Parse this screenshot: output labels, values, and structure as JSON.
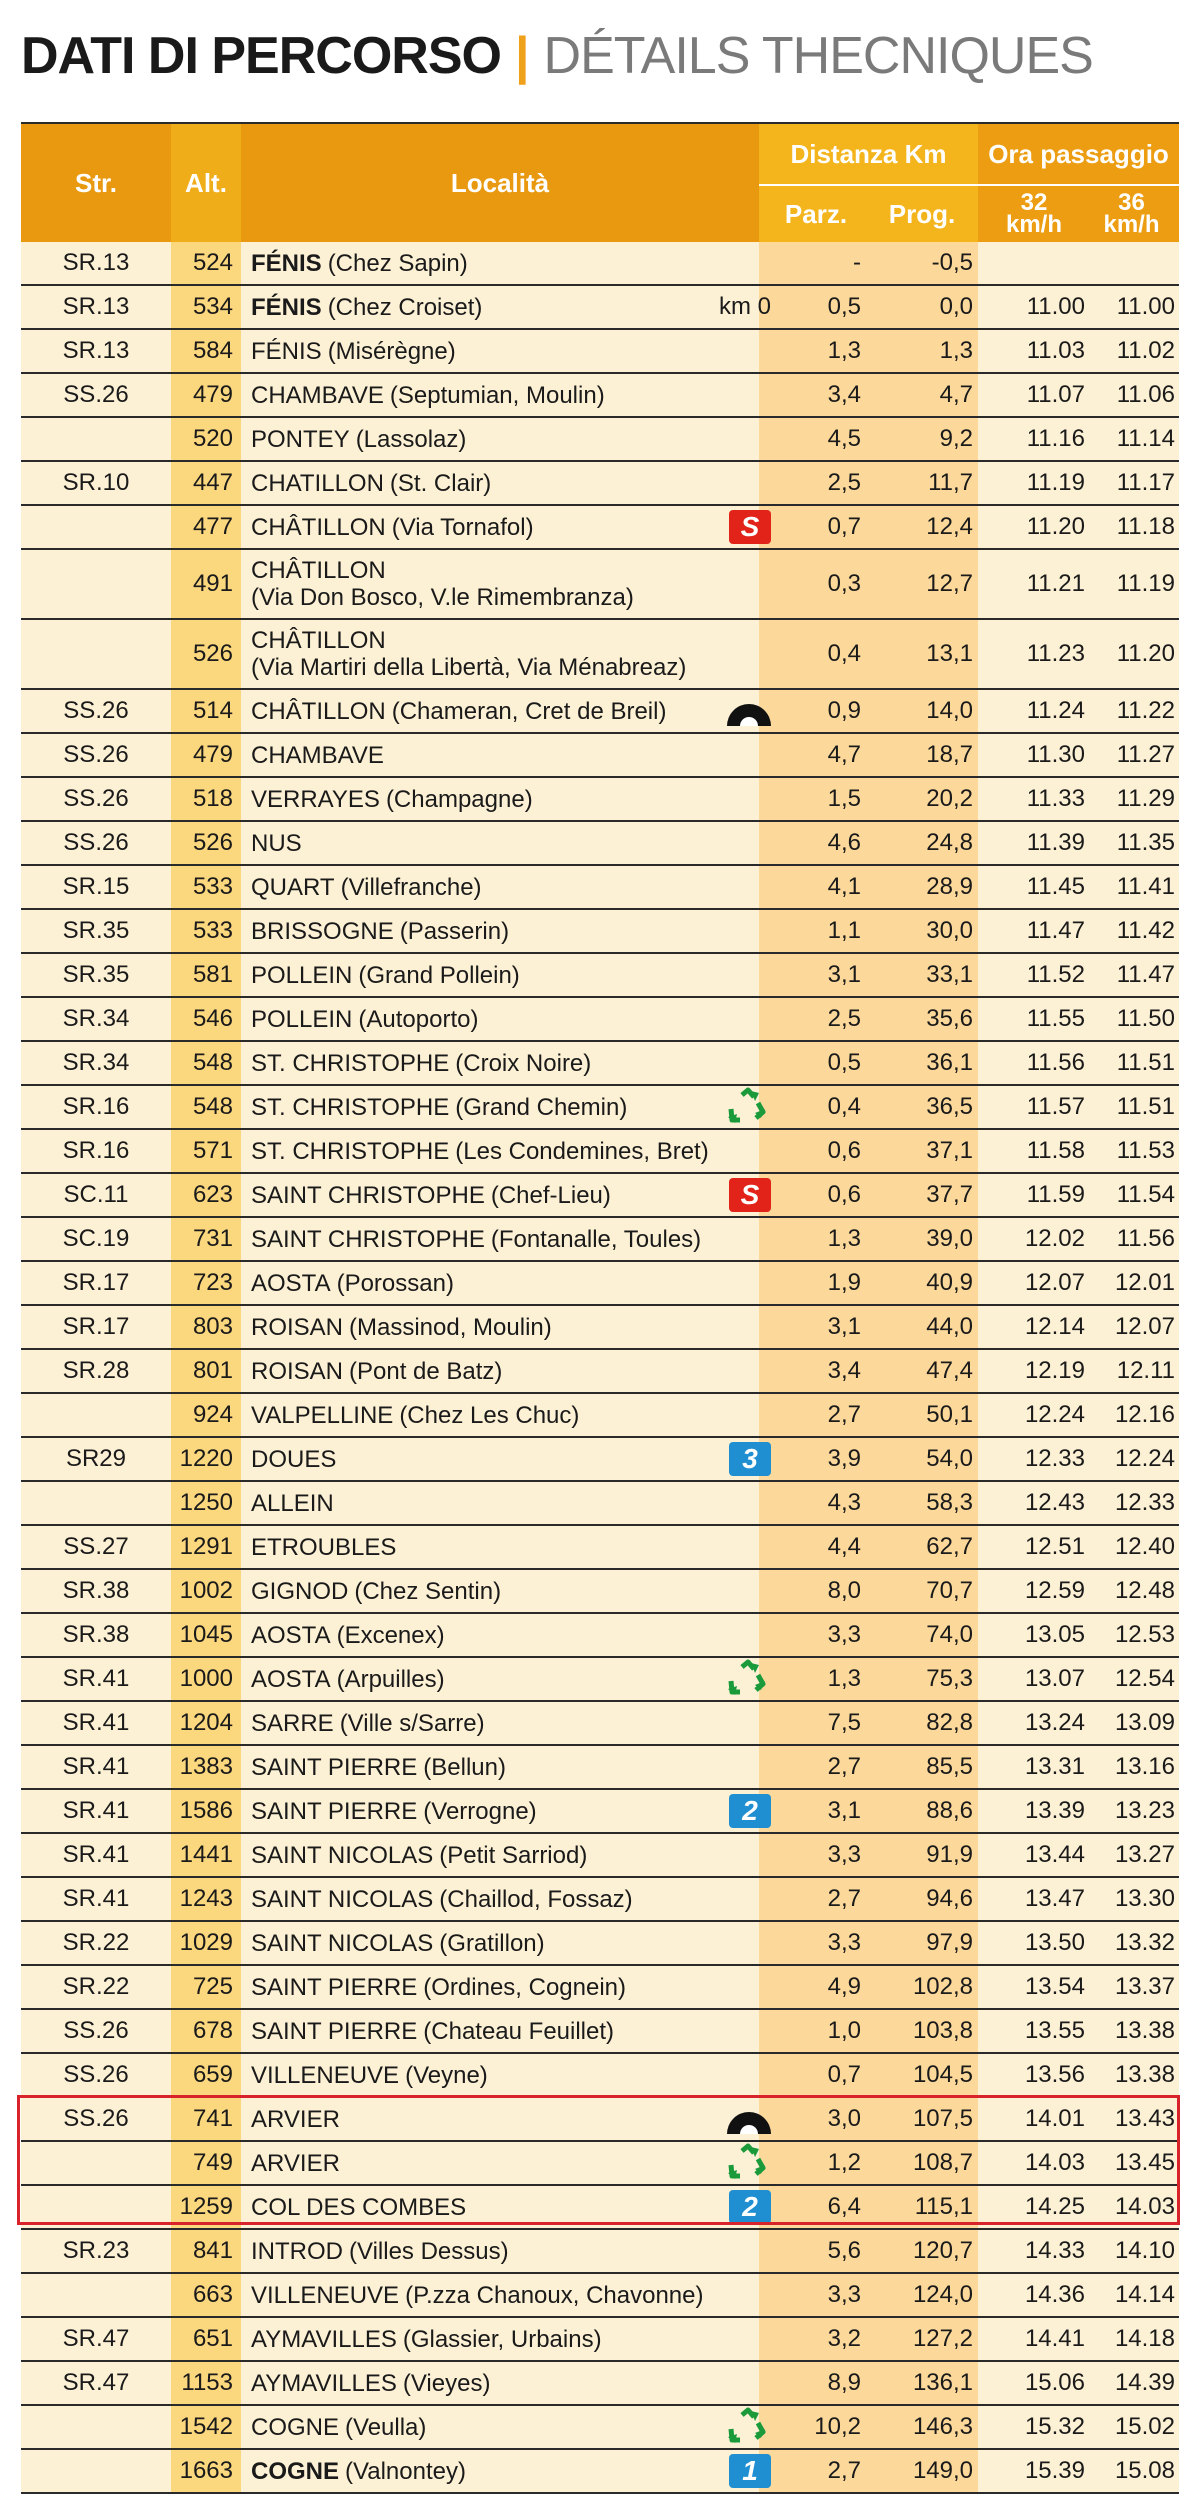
{
  "title": {
    "main": "DATI DI PERCORSO",
    "separator": "|",
    "sub": "DÉTAILS THECNIQUES"
  },
  "colors": {
    "header": "#e8990f",
    "row": "#fdf1d5",
    "alt_column": "#fbd77e",
    "dist_column": "#fcd99a",
    "highlight_border": "#d9232a",
    "icon_red": "#e2231a",
    "icon_blue": "#1f8fd1",
    "icon_green": "#1a9a3a"
  },
  "headers": {
    "str": "Str.",
    "alt": "Alt.",
    "localita": "Località",
    "distanza": "Distanza Km",
    "parz": "Parz.",
    "prog": "Prog.",
    "ora": "Ora passaggio",
    "speed1_num": "32",
    "speed1_unit": "km/h",
    "speed2_num": "36",
    "speed2_unit": "km/h"
  },
  "rows": [
    {
      "str": "SR.13",
      "alt": "524",
      "city": "FÉNIS",
      "bold": true,
      "detail": "(Chez Sapin)",
      "parz": "-",
      "prog": "-0,5",
      "o32": "",
      "o36": ""
    },
    {
      "str": "SR.13",
      "alt": "534",
      "city": "FÉNIS",
      "bold": true,
      "detail": "(Chez Croiset)",
      "note": "km 0",
      "parz": "0,5",
      "prog": "0,0",
      "o32": "11.00",
      "o36": "11.00"
    },
    {
      "str": "SR.13",
      "alt": "584",
      "city": "FÉNIS",
      "detail": "(Misérègne)",
      "parz": "1,3",
      "prog": "1,3",
      "o32": "11.03",
      "o36": "11.02"
    },
    {
      "str": "SS.26",
      "alt": "479",
      "city": "CHAMBAVE",
      "detail": "(Septumian, Moulin)",
      "parz": "3,4",
      "prog": "4,7",
      "o32": "11.07",
      "o36": "11.06"
    },
    {
      "str": "",
      "alt": "520",
      "city": "PONTEY",
      "detail": "(Lassolaz)",
      "parz": "4,5",
      "prog": "9,2",
      "o32": "11.16",
      "o36": "11.14"
    },
    {
      "str": "SR.10",
      "alt": "447",
      "city": "CHATILLON",
      "detail": "(St. Clair)",
      "parz": "2,5",
      "prog": "11,7",
      "o32": "11.19",
      "o36": "11.17"
    },
    {
      "str": "",
      "alt": "477",
      "city": "CHÂTILLON",
      "detail": "(Via Tornafol)",
      "icon": "s",
      "icon_text": "S",
      "parz": "0,7",
      "prog": "12,4",
      "o32": "11.20",
      "o36": "11.18"
    },
    {
      "str": "",
      "alt": "491",
      "city": "CHÂTILLON",
      "detail": "(Via Don Bosco, V.le Rimembranza)",
      "tall": true,
      "parz": "0,3",
      "prog": "12,7",
      "o32": "11.21",
      "o36": "11.19"
    },
    {
      "str": "",
      "alt": "526",
      "city": "CHÂTILLON",
      "detail": "(Via Martiri della Libertà, Via Ménabreaz)",
      "tall": true,
      "parz": "0,4",
      "prog": "13,1",
      "o32": "11.23",
      "o36": "11.20"
    },
    {
      "str": "SS.26",
      "alt": "514",
      "city": "CHÂTILLON",
      "detail": "(Chameran, Cret de Breil)",
      "icon": "tunnel",
      "parz": "0,9",
      "prog": "14,0",
      "o32": "11.24",
      "o36": "11.22"
    },
    {
      "str": "SS.26",
      "alt": "479",
      "city": "CHAMBAVE",
      "detail": "",
      "parz": "4,7",
      "prog": "18,7",
      "o32": "11.30",
      "o36": "11.27"
    },
    {
      "str": "SS.26",
      "alt": "518",
      "city": "VERRAYES",
      "detail": "(Champagne)",
      "parz": "1,5",
      "prog": "20,2",
      "o32": "11.33",
      "o36": "11.29"
    },
    {
      "str": "SS.26",
      "alt": "526",
      "city": "NUS",
      "detail": "",
      "parz": "4,6",
      "prog": "24,8",
      "o32": "11.39",
      "o36": "11.35"
    },
    {
      "str": "SR.15",
      "alt": "533",
      "city": "QUART",
      "detail": "(Villefranche)",
      "parz": "4,1",
      "prog": "28,9",
      "o32": "11.45",
      "o36": "11.41"
    },
    {
      "str": "SR.35",
      "alt": "533",
      "city": "BRISSOGNE",
      "detail": "(Passerin)",
      "parz": "1,1",
      "prog": "30,0",
      "o32": "11.47",
      "o36": "11.42"
    },
    {
      "str": "SR.35",
      "alt": "581",
      "city": "POLLEIN",
      "detail": "(Grand Pollein)",
      "parz": "3,1",
      "prog": "33,1",
      "o32": "11.52",
      "o36": "11.47"
    },
    {
      "str": "SR.34",
      "alt": "546",
      "city": "POLLEIN",
      "detail": "(Autoporto)",
      "parz": "2,5",
      "prog": "35,6",
      "o32": "11.55",
      "o36": "11.50"
    },
    {
      "str": "SR.34",
      "alt": "548",
      "city": "ST. CHRISTOPHE",
      "detail": "(Croix Noire)",
      "parz": "0,5",
      "prog": "36,1",
      "o32": "11.56",
      "o36": "11.51"
    },
    {
      "str": "SR.16",
      "alt": "548",
      "city": "ST. CHRISTOPHE",
      "detail": "(Grand Chemin)",
      "icon": "recycle",
      "parz": "0,4",
      "prog": "36,5",
      "o32": "11.57",
      "o36": "11.51"
    },
    {
      "str": "SR.16",
      "alt": "571",
      "city": "ST. CHRISTOPHE",
      "detail": "(Les Condemines, Bret)",
      "parz": "0,6",
      "prog": "37,1",
      "o32": "11.58",
      "o36": "11.53"
    },
    {
      "str": "SC.11",
      "alt": "623",
      "city": "SAINT CHRISTOPHE",
      "detail": "(Chef-Lieu)",
      "icon": "s",
      "icon_text": "S",
      "parz": "0,6",
      "prog": "37,7",
      "o32": "11.59",
      "o36": "11.54"
    },
    {
      "str": "SC.19",
      "alt": "731",
      "city": "SAINT CHRISTOPHE",
      "detail": "(Fontanalle, Toules)",
      "parz": "1,3",
      "prog": "39,0",
      "o32": "12.02",
      "o36": "11.56"
    },
    {
      "str": "SR.17",
      "alt": "723",
      "city": "AOSTA",
      "detail": "(Porossan)",
      "parz": "1,9",
      "prog": "40,9",
      "o32": "12.07",
      "o36": "12.01"
    },
    {
      "str": "SR.17",
      "alt": "803",
      "city": "ROISAN",
      "detail": "(Massinod, Moulin)",
      "parz": "3,1",
      "prog": "44,0",
      "o32": "12.14",
      "o36": "12.07"
    },
    {
      "str": "SR.28",
      "alt": "801",
      "city": "ROISAN",
      "detail": "(Pont de Batz)",
      "parz": "3,4",
      "prog": "47,4",
      "o32": "12.19",
      "o36": "12.11"
    },
    {
      "str": "",
      "alt": "924",
      "city": "VALPELLINE",
      "detail": "(Chez Les Chuc)",
      "parz": "2,7",
      "prog": "50,1",
      "o32": "12.24",
      "o36": "12.16"
    },
    {
      "str": "SR29",
      "alt": "1220",
      "city": "DOUES",
      "detail": "",
      "icon": "cat",
      "icon_text": "3",
      "parz": "3,9",
      "prog": "54,0",
      "o32": "12.33",
      "o36": "12.24"
    },
    {
      "str": "",
      "alt": "1250",
      "city": "ALLEIN",
      "detail": "",
      "parz": "4,3",
      "prog": "58,3",
      "o32": "12.43",
      "o36": "12.33"
    },
    {
      "str": "SS.27",
      "alt": "1291",
      "city": "ETROUBLES",
      "detail": "",
      "parz": "4,4",
      "prog": "62,7",
      "o32": "12.51",
      "o36": "12.40"
    },
    {
      "str": "SR.38",
      "alt": "1002",
      "city": "GIGNOD",
      "detail": "(Chez Sentin)",
      "parz": "8,0",
      "prog": "70,7",
      "o32": "12.59",
      "o36": "12.48"
    },
    {
      "str": "SR.38",
      "alt": "1045",
      "city": "AOSTA",
      "detail": "(Excenex)",
      "parz": "3,3",
      "prog": "74,0",
      "o32": "13.05",
      "o36": "12.53"
    },
    {
      "str": "SR.41",
      "alt": "1000",
      "city": "AOSTA",
      "detail": "(Arpuilles)",
      "icon": "recycle",
      "parz": "1,3",
      "prog": "75,3",
      "o32": "13.07",
      "o36": "12.54"
    },
    {
      "str": "SR.41",
      "alt": "1204",
      "city": "SARRE",
      "detail": "(Ville s/Sarre)",
      "parz": "7,5",
      "prog": "82,8",
      "o32": "13.24",
      "o36": "13.09"
    },
    {
      "str": "SR.41",
      "alt": "1383",
      "city": "SAINT PIERRE",
      "detail": "(Bellun)",
      "parz": "2,7",
      "prog": "85,5",
      "o32": "13.31",
      "o36": "13.16"
    },
    {
      "str": "SR.41",
      "alt": "1586",
      "city": "SAINT PIERRE",
      "detail": "(Verrogne)",
      "icon": "cat",
      "icon_text": "2",
      "parz": "3,1",
      "prog": "88,6",
      "o32": "13.39",
      "o36": "13.23"
    },
    {
      "str": "SR.41",
      "alt": "1441",
      "city": "SAINT NICOLAS",
      "detail": "(Petit Sarriod)",
      "parz": "3,3",
      "prog": "91,9",
      "o32": "13.44",
      "o36": "13.27"
    },
    {
      "str": "SR.41",
      "alt": "1243",
      "city": "SAINT NICOLAS",
      "detail": "(Chaillod, Fossaz)",
      "parz": "2,7",
      "prog": "94,6",
      "o32": "13.47",
      "o36": "13.30"
    },
    {
      "str": "SR.22",
      "alt": "1029",
      "city": "SAINT NICOLAS",
      "detail": "(Gratillon)",
      "parz": "3,3",
      "prog": "97,9",
      "o32": "13.50",
      "o36": "13.32"
    },
    {
      "str": "SR.22",
      "alt": "725",
      "city": "SAINT PIERRE",
      "detail": "(Ordines, Cognein)",
      "parz": "4,9",
      "prog": "102,8",
      "o32": "13.54",
      "o36": "13.37"
    },
    {
      "str": "SS.26",
      "alt": "678",
      "city": "SAINT PIERRE",
      "detail": "(Chateau Feuillet)",
      "parz": "1,0",
      "prog": "103,8",
      "o32": "13.55",
      "o36": "13.38"
    },
    {
      "str": "SS.26",
      "alt": "659",
      "city": "VILLENEUVE",
      "detail": "(Veyne)",
      "parz": "0,7",
      "prog": "104,5",
      "o32": "13.56",
      "o36": "13.38"
    },
    {
      "str": "SS.26",
      "alt": "741",
      "city": "ARVIER",
      "detail": "",
      "icon": "tunnel",
      "parz": "3,0",
      "prog": "107,5",
      "o32": "14.01",
      "o36": "13.43"
    },
    {
      "str": "",
      "alt": "749",
      "city": "ARVIER",
      "detail": "",
      "icon": "recycle",
      "parz": "1,2",
      "prog": "108,7",
      "o32": "14.03",
      "o36": "13.45"
    },
    {
      "str": "",
      "alt": "1259",
      "city": "COL DES COMBES",
      "detail": "",
      "icon": "cat",
      "icon_text": "2",
      "parz": "6,4",
      "prog": "115,1",
      "o32": "14.25",
      "o36": "14.03"
    },
    {
      "str": "SR.23",
      "alt": "841",
      "city": "INTROD",
      "detail": "(Villes Dessus)",
      "parz": "5,6",
      "prog": "120,7",
      "o32": "14.33",
      "o36": "14.10"
    },
    {
      "str": "",
      "alt": "663",
      "city": "VILLENEUVE",
      "detail": "(P.zza Chanoux, Chavonne)",
      "parz": "3,3",
      "prog": "124,0",
      "o32": "14.36",
      "o36": "14.14"
    },
    {
      "str": "SR.47",
      "alt": "651",
      "city": "AYMAVILLES",
      "detail": "(Glassier, Urbains)",
      "parz": "3,2",
      "prog": "127,2",
      "o32": "14.41",
      "o36": "14.18"
    },
    {
      "str": "SR.47",
      "alt": "1153",
      "city": "AYMAVILLES",
      "detail": "(Vieyes)",
      "parz": "8,9",
      "prog": "136,1",
      "o32": "15.06",
      "o36": "14.39"
    },
    {
      "str": "",
      "alt": "1542",
      "city": "COGNE",
      "detail": "(Veulla)",
      "icon": "recycle",
      "parz": "10,2",
      "prog": "146,3",
      "o32": "15.32",
      "o36": "15.02"
    },
    {
      "str": "",
      "alt": "1663",
      "city": "COGNE",
      "bold": true,
      "detail": "(Valnontey)",
      "icon": "cat",
      "icon_text": "1",
      "parz": "2,7",
      "prog": "149,0",
      "o32": "15.39",
      "o36": "15.08"
    }
  ]
}
